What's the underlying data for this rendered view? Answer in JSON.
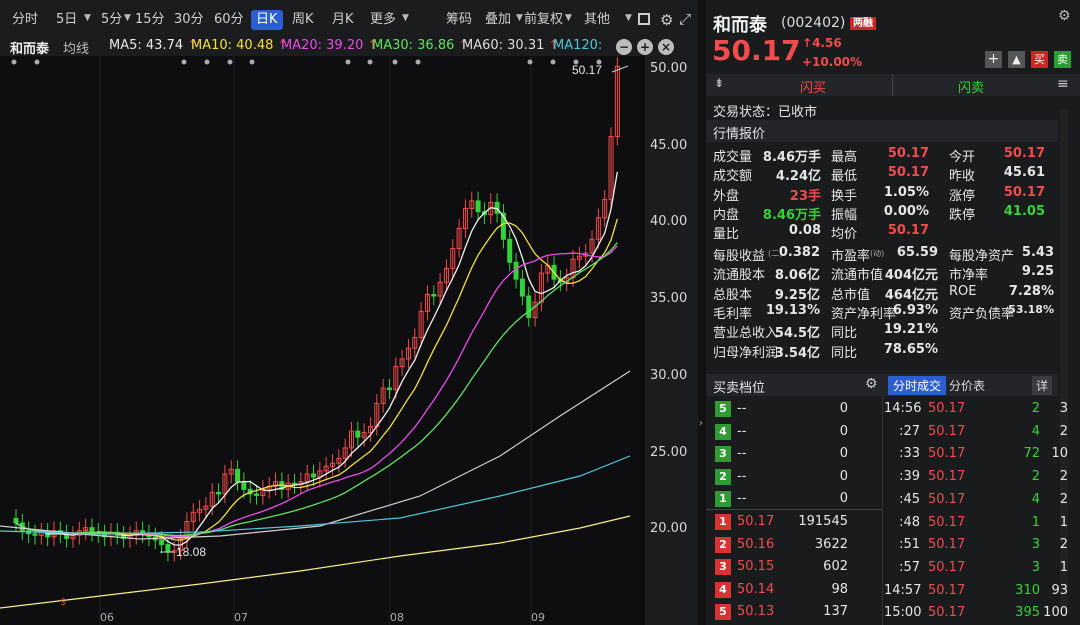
{
  "toolbar": {
    "items": [
      "分时",
      "5日",
      "5分",
      "15分",
      "30分",
      "60分",
      "日K",
      "周K",
      "月K",
      "更多",
      "筹码",
      "叠加",
      "前复权",
      "其他"
    ],
    "active": "日K"
  },
  "stock_label": "和而泰",
  "ma": {
    "label": "均线",
    "ma5": "MA5: 43.74",
    "ma10": "MA10: 40.48",
    "ma20": "MA20: 39.20",
    "ma30": "MA30: 36.86",
    "ma60": "MA60: 30.31",
    "ma120": "MA120:"
  },
  "chart_data": {
    "type": "candlestick",
    "y_ticks": [
      "50.00",
      "45.00",
      "40.00",
      "35.00",
      "30.00",
      "25.00",
      "20.00"
    ],
    "x_ticks": [
      "06",
      "07",
      "08",
      "09"
    ],
    "last_price_label": "50.17",
    "low_label": "18.08"
  },
  "quote": {
    "name": "和而泰",
    "code": "(002402)",
    "badge": "两融",
    "price": "50.17",
    "change": "4.56",
    "pct": "+10.00%",
    "flash_buy": "闪买",
    "flash_sell": "闪卖",
    "status": "交易状态：已收市",
    "section": "行情报价"
  },
  "stats": [
    [
      "成交量",
      "8.46万手",
      "最高",
      "50.17",
      "今开",
      "50.17"
    ],
    [
      "成交额",
      "4.24亿",
      "最低",
      "50.17",
      "昨收",
      "45.61"
    ],
    [
      "外盘",
      "23手",
      "换手",
      "1.05%",
      "涨停",
      "50.17"
    ],
    [
      "内盘",
      "8.46万手",
      "振幅",
      "0.00%",
      "跌停",
      "41.05"
    ],
    [
      "量比",
      "0.08",
      "均价",
      "50.17",
      "",
      ""
    ]
  ],
  "fin": [
    [
      "每股收益",
      "(二)",
      "0.382",
      "市盈率",
      "(动)",
      "65.59",
      "每股净资产",
      "5.43"
    ],
    [
      "流通股本",
      "",
      "8.06亿",
      "流通市值",
      "",
      "404亿元",
      "市净率",
      "9.25"
    ],
    [
      "总股本",
      "",
      "9.25亿",
      "总市值",
      "",
      "464亿元",
      "ROE",
      "7.28%"
    ],
    [
      "毛利率",
      "",
      "19.13%",
      "资产净利率",
      "",
      "6.93%",
      "资产负债率",
      "53.18%"
    ],
    [
      "营业总收入",
      "",
      "54.5亿",
      "同比",
      "",
      "19.21%",
      "",
      ""
    ],
    [
      "归母净利润",
      "",
      "3.54亿",
      "同比",
      "",
      "78.65%",
      "",
      ""
    ]
  ],
  "book": {
    "title": "买卖档位",
    "tab1": "分时成交",
    "tab2": "分价表",
    "more": "详",
    "asks": [
      [
        "5",
        "--",
        "0"
      ],
      [
        "4",
        "--",
        "0"
      ],
      [
        "3",
        "--",
        "0"
      ],
      [
        "2",
        "--",
        "0"
      ],
      [
        "1",
        "--",
        "0"
      ]
    ],
    "bids": [
      [
        "1",
        "50.17",
        "191545"
      ],
      [
        "2",
        "50.16",
        "3622"
      ],
      [
        "3",
        "50.15",
        "602"
      ],
      [
        "4",
        "50.14",
        "98"
      ],
      [
        "5",
        "50.13",
        "137"
      ]
    ]
  },
  "ticks": [
    [
      "14:56",
      "50.17",
      "2",
      "3"
    ],
    [
      ":27",
      "50.17",
      "4",
      "2"
    ],
    [
      ":33",
      "50.17",
      "72",
      "10"
    ],
    [
      ":39",
      "50.17",
      "2",
      "2"
    ],
    [
      ":45",
      "50.17",
      "4",
      "2"
    ],
    [
      ":48",
      "50.17",
      "1",
      "1"
    ],
    [
      ":51",
      "50.17",
      "3",
      "2"
    ],
    [
      ":57",
      "50.17",
      "3",
      "1"
    ],
    [
      "14:57",
      "50.17",
      "310",
      "93"
    ],
    [
      "15:00",
      "50.17",
      "395",
      "100"
    ]
  ]
}
